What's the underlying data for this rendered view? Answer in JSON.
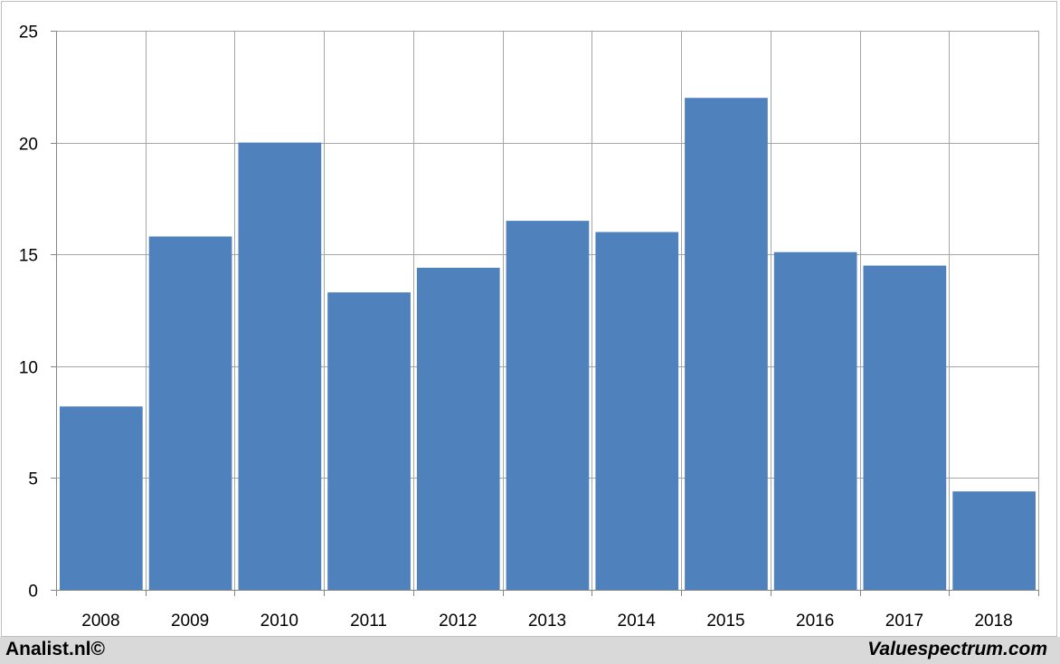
{
  "chart_data": {
    "type": "bar",
    "categories": [
      "2008",
      "2009",
      "2010",
      "2011",
      "2012",
      "2013",
      "2014",
      "2015",
      "2016",
      "2017",
      "2018"
    ],
    "values": [
      8.2,
      15.8,
      20.0,
      13.3,
      14.4,
      16.5,
      16.0,
      22.0,
      15.1,
      14.5,
      4.4
    ],
    "title": "",
    "xlabel": "",
    "ylabel": "",
    "ylim": [
      0,
      25
    ],
    "yticks": [
      0,
      5,
      10,
      15,
      20,
      25
    ],
    "grid": true,
    "legend": "none",
    "bar_color": "#4f81bd",
    "grid_color": "#a6a6a6"
  },
  "footer": {
    "left_text": "Analist.nl©",
    "right_text": "Valuespectrum.com"
  }
}
